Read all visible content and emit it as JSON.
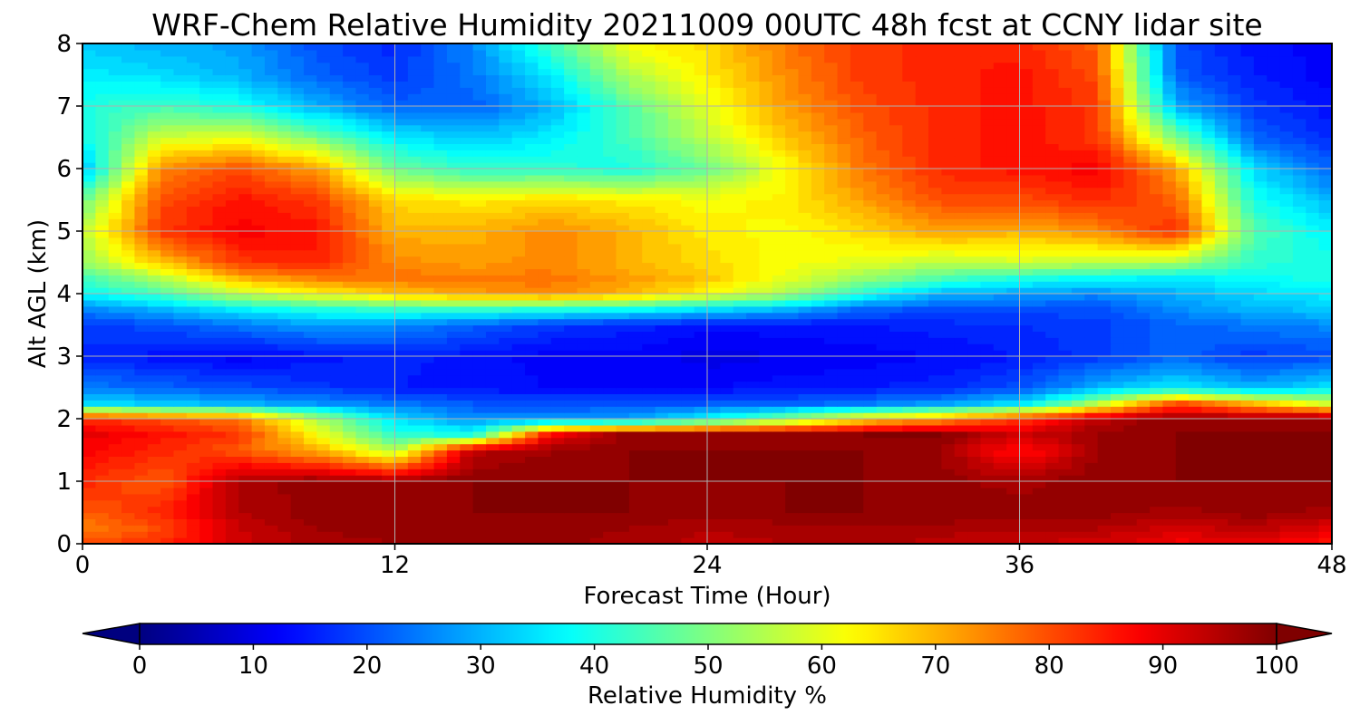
{
  "chart_data": {
    "type": "heatmap",
    "title": "WRF-Chem Relative Humidity 20211009 00UTC 48h fcst at CCNY lidar site",
    "xlabel": "Forecast Time (Hour)",
    "ylabel": "Alt AGL (km)",
    "xlim": [
      0,
      48
    ],
    "ylim": [
      0,
      8
    ],
    "x_ticks": [
      0,
      12,
      24,
      36,
      48
    ],
    "y_ticks": [
      0,
      1,
      2,
      3,
      4,
      5,
      6,
      7,
      8
    ],
    "grid": true,
    "x": [
      0,
      3,
      6,
      9,
      12,
      15,
      18,
      21,
      24,
      27,
      30,
      33,
      36,
      39,
      42,
      45,
      48
    ],
    "y": [
      0,
      0.25,
      0.5,
      1,
      1.5,
      1.75,
      2,
      2.25,
      2.5,
      3,
      3.5,
      3.75,
      4,
      4.25,
      4.5,
      5,
      5.5,
      6,
      6.5,
      7,
      7.5,
      8
    ],
    "z_units": "Relative Humidity %",
    "z": [
      [
        80,
        84,
        92,
        96,
        97,
        97,
        98,
        96,
        94,
        95,
        96,
        94,
        93,
        92,
        88,
        90,
        85
      ],
      [
        75,
        80,
        93,
        97,
        98,
        98,
        98,
        97,
        95,
        96,
        97,
        96,
        95,
        95,
        92,
        94,
        90
      ],
      [
        78,
        84,
        95,
        98,
        99,
        99,
        99,
        99,
        98,
        99,
        99,
        99,
        98,
        98,
        96,
        98,
        96
      ],
      [
        84,
        78,
        96,
        98,
        97,
        99,
        99,
        99,
        99,
        99,
        99,
        98,
        96,
        99,
        99,
        99,
        99
      ],
      [
        88,
        84,
        79,
        70,
        55,
        94,
        97,
        99,
        99,
        99,
        99,
        97,
        85,
        97,
        99,
        99,
        99
      ],
      [
        90,
        86,
        82,
        62,
        42,
        40,
        88,
        98,
        98,
        98,
        99,
        99,
        92,
        97,
        99,
        99,
        99
      ],
      [
        84,
        80,
        76,
        55,
        35,
        26,
        27,
        28,
        38,
        50,
        65,
        72,
        82,
        94,
        99,
        98,
        99
      ],
      [
        35,
        32,
        30,
        27,
        24,
        21,
        20,
        20,
        21,
        22,
        24,
        28,
        35,
        55,
        80,
        68,
        58
      ],
      [
        25,
        22,
        20,
        18,
        15,
        14,
        13,
        13,
        13,
        14,
        15,
        16,
        20,
        30,
        36,
        30,
        35
      ],
      [
        16,
        14,
        12,
        14,
        16,
        14,
        12,
        12,
        10,
        11,
        12,
        13,
        15,
        18,
        22,
        18,
        20
      ],
      [
        18,
        20,
        24,
        28,
        26,
        22,
        18,
        16,
        14,
        14,
        15,
        16,
        17,
        18,
        22,
        24,
        26
      ],
      [
        25,
        30,
        36,
        40,
        42,
        42,
        40,
        38,
        34,
        30,
        22,
        20,
        20,
        20,
        26,
        30,
        32
      ],
      [
        38,
        44,
        56,
        62,
        68,
        72,
        74,
        70,
        62,
        54,
        40,
        30,
        28,
        26,
        30,
        34,
        36
      ],
      [
        44,
        55,
        70,
        75,
        76,
        76,
        76,
        72,
        68,
        60,
        52,
        45,
        40,
        38,
        36,
        38,
        40
      ],
      [
        52,
        68,
        82,
        84,
        74,
        72,
        74,
        70,
        66,
        62,
        60,
        56,
        58,
        56,
        54,
        42,
        40
      ],
      [
        56,
        82,
        88,
        86,
        70,
        70,
        74,
        70,
        64,
        62,
        66,
        72,
        70,
        74,
        84,
        46,
        36
      ],
      [
        48,
        80,
        86,
        82,
        66,
        64,
        66,
        64,
        62,
        64,
        72,
        80,
        80,
        84,
        78,
        40,
        30
      ],
      [
        30,
        74,
        80,
        72,
        48,
        42,
        42,
        40,
        48,
        62,
        76,
        84,
        86,
        88,
        72,
        34,
        22
      ],
      [
        38,
        58,
        60,
        50,
        36,
        32,
        36,
        44,
        56,
        68,
        78,
        84,
        86,
        82,
        50,
        22,
        16
      ],
      [
        40,
        44,
        40,
        30,
        22,
        22,
        30,
        46,
        60,
        72,
        80,
        84,
        86,
        82,
        30,
        18,
        14
      ],
      [
        36,
        34,
        30,
        22,
        18,
        24,
        36,
        55,
        64,
        74,
        82,
        84,
        86,
        80,
        22,
        15,
        12
      ],
      [
        32,
        30,
        28,
        20,
        16,
        26,
        44,
        62,
        66,
        76,
        82,
        84,
        84,
        78,
        20,
        14,
        12
      ]
    ],
    "colorbar": {
      "label": "Relative Humidity %",
      "ticks": [
        0,
        10,
        20,
        30,
        40,
        50,
        60,
        70,
        80,
        90,
        100
      ],
      "range": [
        0,
        100
      ],
      "extend": "both",
      "colormap": "jet"
    }
  }
}
